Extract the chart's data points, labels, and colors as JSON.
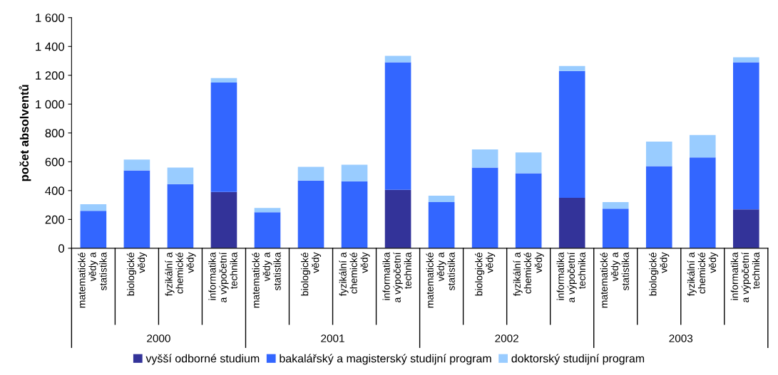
{
  "chart_data": {
    "type": "bar",
    "stacked": true,
    "ylabel": "počet absolventů",
    "categories": [
      "matematické\nvědy a\nstatistika",
      "biologické\nvědy",
      "fyzikální a\nchemické\nvědy",
      "informatika\na výpočetní\ntechnika",
      "matematické\nvědy a\nstatistika",
      "biologické\nvědy",
      "fyzikální a\nchemické\nvědy",
      "informatika\na výpočetní\ntechnika",
      "matematické\nvědy a\nstatistika",
      "biologické\nvědy",
      "fyzikální a\nchemické\nvědy",
      "informatika\na výpočetní\ntechnika",
      "matematické\nvědy a\nstatistika",
      "biologické\nvědy",
      "fyzikální a\nchemické\nvědy",
      "informatika\na výpočetní\ntechnika"
    ],
    "annotations": [
      "2000",
      "2001",
      "2002",
      "2003"
    ],
    "series": [
      {
        "name": "vyšší odborné studium",
        "color": "#333399",
        "values": [
          0,
          0,
          0,
          390,
          0,
          0,
          0,
          405,
          0,
          0,
          0,
          350,
          0,
          0,
          0,
          270
        ]
      },
      {
        "name": "bakalářský a magisterský studijní program",
        "color": "#3366ff",
        "values": [
          260,
          540,
          445,
          760,
          250,
          470,
          465,
          885,
          320,
          560,
          520,
          880,
          275,
          570,
          630,
          1020
        ]
      },
      {
        "name": "doktorský studijní program",
        "color": "#99ccff",
        "values": [
          45,
          75,
          115,
          30,
          30,
          95,
          115,
          45,
          45,
          125,
          145,
          35,
          45,
          170,
          155,
          35
        ]
      }
    ],
    "ylim": [
      0,
      1600
    ],
    "yticks": [
      0,
      200,
      400,
      600,
      800,
      {
        "value": 1000,
        "label": "1 000"
      },
      {
        "value": 1200,
        "label": "1 200"
      },
      {
        "value": 1400,
        "label": "1 400"
      },
      {
        "value": 1600,
        "label": "1 600"
      }
    ],
    "grid": false,
    "legend": "bottom"
  }
}
